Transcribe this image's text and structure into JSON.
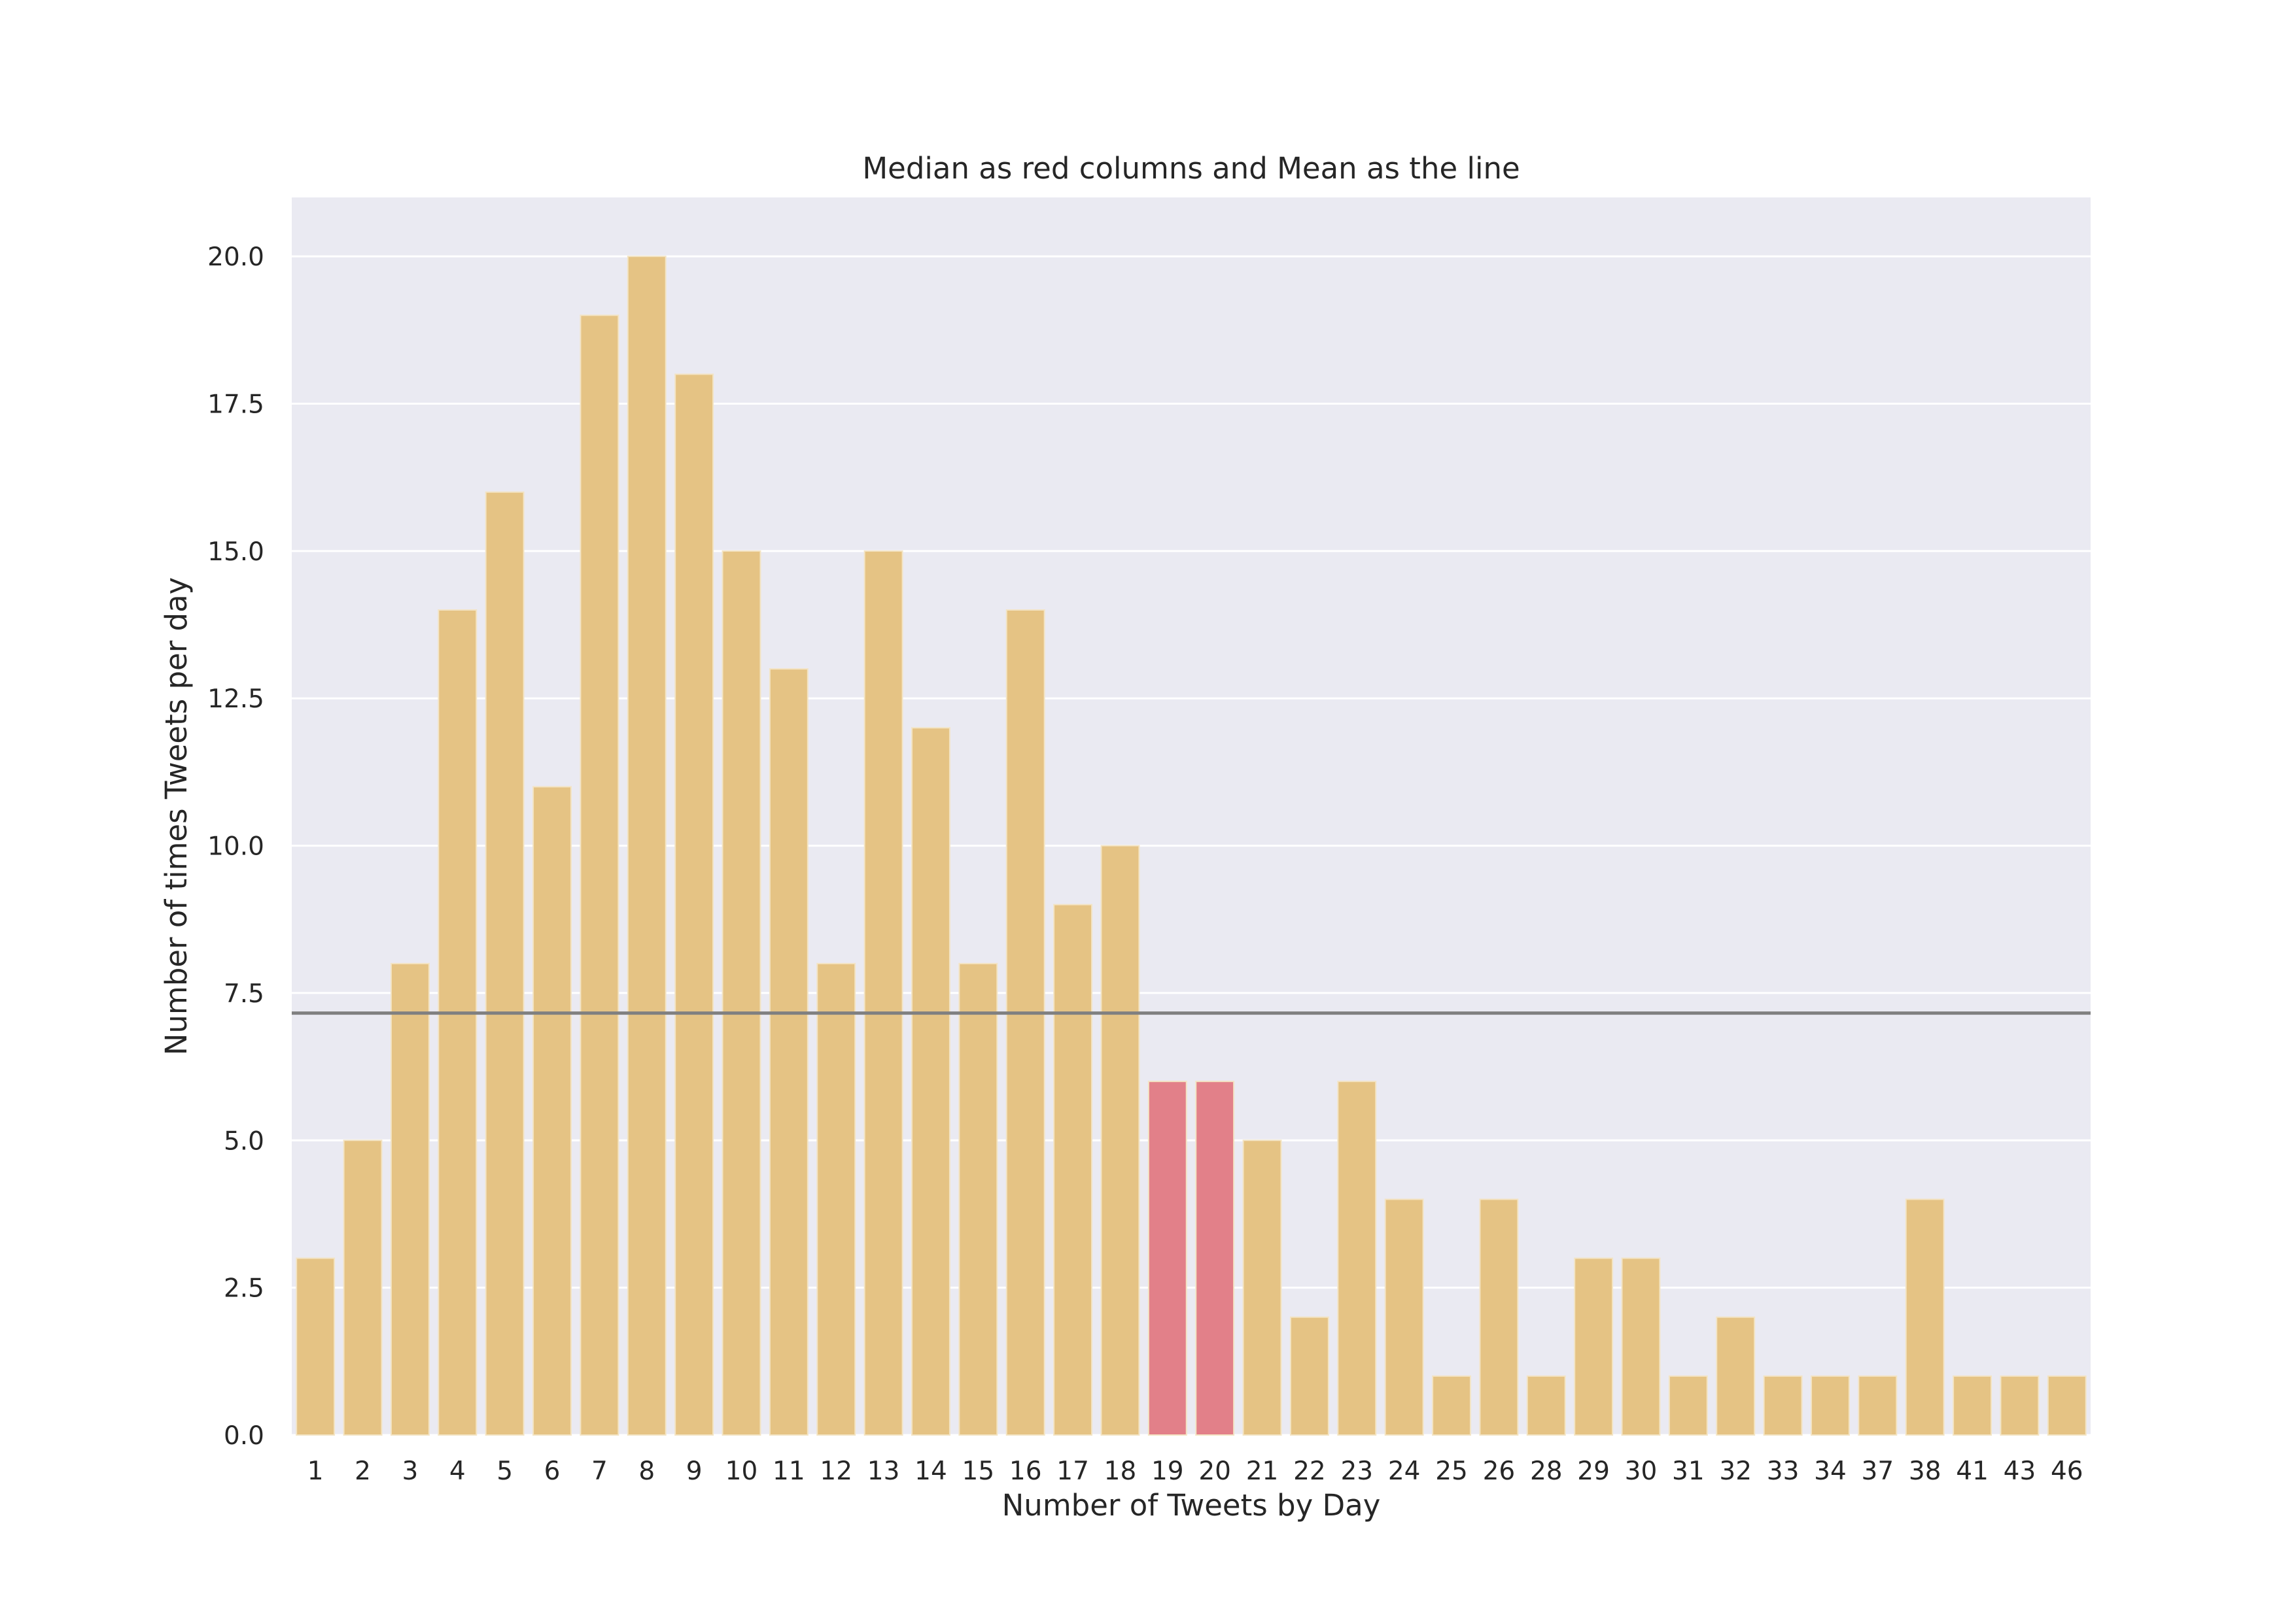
{
  "chart_data": {
    "type": "bar",
    "title": "Median as red columns and Mean as the line",
    "xlabel": "Number of Tweets by Day",
    "ylabel": "Number of times Tweets per day",
    "categories": [
      "1",
      "2",
      "3",
      "4",
      "5",
      "6",
      "7",
      "8",
      "9",
      "10",
      "11",
      "12",
      "13",
      "14",
      "15",
      "16",
      "17",
      "18",
      "19",
      "20",
      "21",
      "22",
      "23",
      "24",
      "25",
      "26",
      "28",
      "29",
      "30",
      "31",
      "32",
      "33",
      "34",
      "37",
      "38",
      "41",
      "43",
      "46"
    ],
    "values": [
      3,
      5,
      8,
      14,
      16,
      11,
      19,
      20,
      18,
      15,
      13,
      8,
      15,
      12,
      8,
      14,
      9,
      10,
      6,
      6,
      5,
      2,
      6,
      4,
      1,
      4,
      1,
      3,
      3,
      1,
      2,
      1,
      1,
      1,
      4,
      1,
      1,
      1
    ],
    "highlighted_categories": [
      "19",
      "20"
    ],
    "mean": 7.16,
    "ylim": [
      0,
      21
    ],
    "yticks": [
      0.0,
      2.5,
      5.0,
      7.5,
      10.0,
      12.5,
      15.0,
      17.5,
      20.0
    ],
    "ytick_labels": [
      "0.0",
      "2.5",
      "5.0",
      "7.5",
      "10.0",
      "12.5",
      "15.0",
      "17.5",
      "20.0"
    ],
    "grid": true,
    "legend": "none",
    "colors": {
      "bar": "#e5c384",
      "highlight": "#e28089",
      "mean_line": "#808080",
      "plot_background": "#eaeaf2",
      "grid": "#ffffff"
    }
  }
}
